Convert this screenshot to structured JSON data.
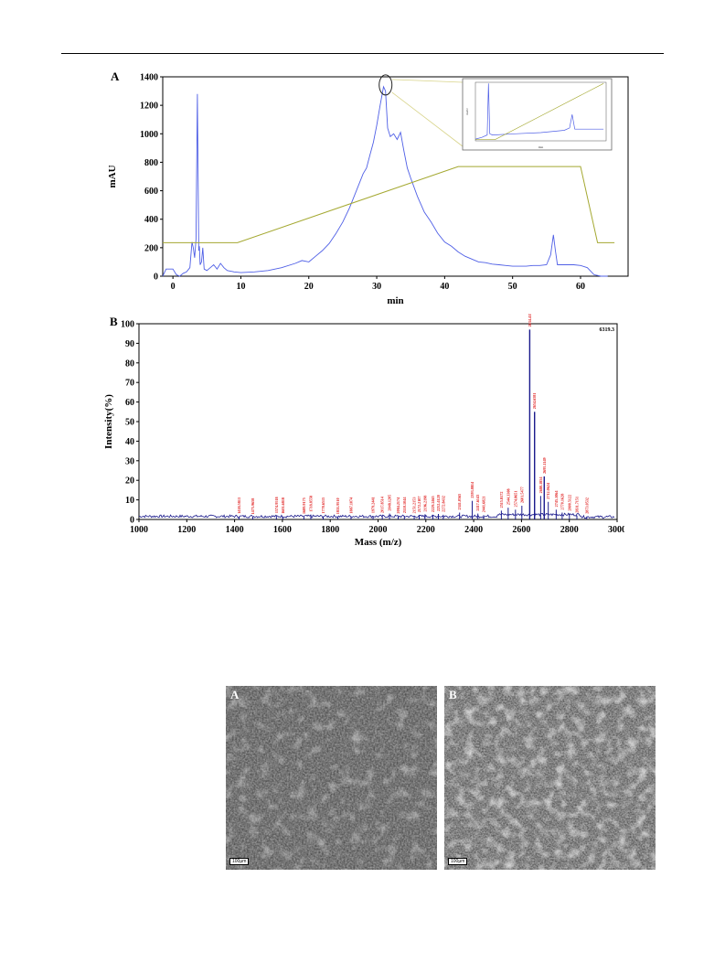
{
  "figure_chromatogram": {
    "panel_label": "A",
    "chart_data": {
      "type": "line",
      "xlabel": "min",
      "ylabel": "mAU",
      "xlim": [
        -1.5,
        67
      ],
      "ylim": [
        0,
        1400
      ],
      "xticks": [
        "0",
        "10",
        "20",
        "30",
        "40",
        "50",
        "60"
      ],
      "yticks": [
        "0",
        "200",
        "400",
        "600",
        "800",
        "1000",
        "1200",
        "1400"
      ],
      "series": [
        {
          "color": "#4f5fe6",
          "x": [
            -1.5,
            -1,
            -0.6,
            0,
            0.5,
            1,
            1.5,
            2,
            2.5,
            2.8,
            3.0,
            3.2,
            3.4,
            3.6,
            3.8,
            3.9,
            4.0,
            4.2,
            4.4,
            4.6,
            5.0,
            5.5,
            6.0,
            6.5,
            7.0,
            7.5,
            8.0,
            9,
            10,
            12,
            14,
            16,
            18,
            19,
            20,
            21,
            22,
            23,
            24,
            25,
            26,
            27,
            28,
            28.5,
            29,
            29.5,
            30,
            30.5,
            31,
            31.3,
            31.6,
            32,
            32.5,
            33,
            33.5,
            34,
            34.5,
            35,
            36,
            37,
            38,
            39,
            40,
            41,
            42,
            43,
            44,
            45,
            46,
            47,
            48,
            49,
            50,
            51,
            52,
            53,
            54,
            55,
            55.6,
            56,
            56.3,
            56.6,
            57,
            58,
            59,
            60,
            61,
            62,
            63,
            64
          ],
          "y": [
            0,
            50,
            50,
            50,
            10,
            0,
            20,
            30,
            60,
            240,
            200,
            130,
            260,
            1280,
            180,
            210,
            80,
            100,
            200,
            50,
            40,
            60,
            80,
            50,
            90,
            60,
            40,
            30,
            25,
            30,
            40,
            60,
            90,
            110,
            100,
            140,
            180,
            230,
            300,
            380,
            480,
            600,
            720,
            760,
            850,
            940,
            1060,
            1200,
            1330,
            1300,
            1040,
            980,
            1000,
            960,
            1010,
            880,
            760,
            690,
            560,
            450,
            380,
            300,
            240,
            210,
            170,
            140,
            120,
            100,
            95,
            85,
            80,
            75,
            70,
            70,
            70,
            75,
            75,
            80,
            150,
            290,
            180,
            80,
            80,
            80,
            80,
            75,
            60,
            10,
            0,
            0
          ]
        },
        {
          "color": "#a4a830",
          "x": [
            -1.5,
            9.5,
            42,
            60,
            62.5,
            65
          ],
          "y": [
            235,
            235,
            770,
            770,
            235,
            235
          ]
        }
      ]
    },
    "highlight_marker": "ellipse around main peak",
    "inset": {
      "ylabel": "mAU",
      "xlabel": "min",
      "chart_data": {
        "type": "line",
        "series": [
          {
            "color": "#4f5fe6"
          },
          {
            "color": "#a4a830"
          }
        ]
      }
    }
  },
  "figure_mass_spectrum": {
    "panel_label": "B",
    "peak_annotation": "6319.3",
    "chart_data": {
      "type": "bar",
      "xlabel": "Mass  (m/z)",
      "ylabel": "Intensity(%)",
      "xlim": [
        1000,
        3000
      ],
      "ylim": [
        0,
        100
      ],
      "xticks": [
        "1000",
        "1200",
        "1400",
        "1600",
        "1800",
        "2000",
        "2200",
        "2400",
        "2600",
        "2800",
        "3000"
      ],
      "yticks": [
        "0",
        "10",
        "20",
        "30",
        "40",
        "50",
        "60",
        "70",
        "80",
        "90",
        "100"
      ],
      "baseline_color": "#1a1a8c",
      "label_color": "#e02020",
      "peaks_x": [
        1418.5,
        1475.9,
        1574.9,
        1601.7,
        1689.9,
        1718.9,
        1770.6,
        1831.9,
        1887.1,
        1979.2,
        2017.8,
        2048.1,
        2084.2,
        2110.1,
        2151.3,
        2172.2,
        2196.2,
        2229.2,
        2252.4,
        2272.8,
        2341.0,
        2393.8,
        2417.6,
        2441.7,
        2515.8,
        2544.3,
        2574.8,
        2601.6,
        2634.4,
        2654.7,
        2680.2,
        2695.1,
        2712.0,
        2745.1,
        2770.2,
        2800.5,
        2831.7,
        2873.0
      ],
      "peaks_y": [
        1.5,
        1.2,
        1.8,
        1.5,
        1.4,
        2.5,
        1.6,
        1.3,
        1.6,
        1.8,
        1.9,
        3.0,
        1.6,
        1.8,
        1.7,
        2.2,
        2.6,
        2.3,
        2.8,
        2.4,
        3.5,
        9.5,
        3.0,
        2.2,
        4.5,
        6.0,
        5.0,
        7.0,
        97.0,
        55.0,
        12.0,
        22.0,
        9.0,
        5.0,
        3.5,
        3.0,
        2.0,
        1.5
      ],
      "peak_labels": [
        "1418.5813",
        "1475.9658",
        "1574.9518",
        "1601.6818",
        "1689.9175",
        "1718.8558",
        "1770.6515",
        "1831.9510",
        "1887.1074",
        "1979.2441",
        "2017.8514",
        "2048.1205",
        "2084.2174",
        "2110.1044",
        "2151.2153",
        "2172.2107",
        "2196.2198",
        "2229.2465",
        "2252.4120",
        "2272.8432",
        "2341.0565",
        "2393.8814",
        "2417.6143",
        "2441.6821",
        "2515.8172",
        "2544.3308",
        "2574.8651",
        "2601.5477",
        "2634.4158",
        "2654.6581",
        "2680.1854",
        "2695.1149",
        "2712.0624",
        "2745.1064",
        "2770.1628",
        "2800.5122",
        "2831.7151",
        "2873.0532"
      ]
    }
  },
  "figure_micrographs": [
    {
      "panel_label": "A",
      "scale_bar": "100μm"
    },
    {
      "panel_label": "B",
      "scale_bar": "100μm"
    }
  ]
}
